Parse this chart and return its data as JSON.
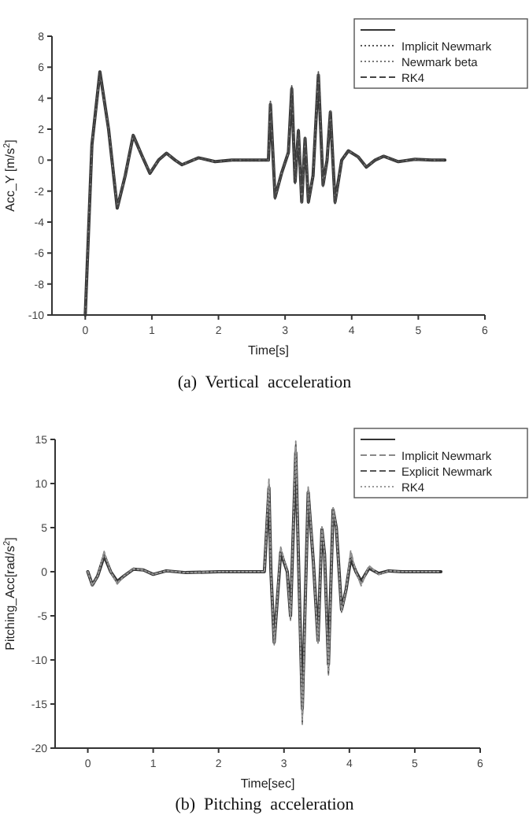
{
  "chart_data": [
    {
      "type": "line",
      "xlabel": "Time[s]",
      "ylabel": "Acc_Y [m/s$^{2}$]",
      "annotations": [
        "(a)  Vertical  acceleration"
      ],
      "xlim": [
        -0.5,
        6
      ],
      "ylim": [
        -10,
        8
      ],
      "xticks": [
        0,
        1,
        2,
        3,
        4,
        5,
        6
      ],
      "yticks": [
        -10,
        -8,
        -6,
        -4,
        -2,
        0,
        2,
        4,
        6,
        8
      ],
      "grid": false,
      "legend": "top right",
      "marker": "none",
      "x": [
        0,
        0.1,
        0.22,
        0.35,
        0.48,
        0.6,
        0.72,
        0.85,
        0.97,
        1.1,
        1.22,
        1.35,
        1.45,
        1.7,
        1.95,
        2.2,
        2.75,
        2.78,
        2.85,
        2.95,
        3.05,
        3.1,
        3.15,
        3.2,
        3.25,
        3.3,
        3.35,
        3.42,
        3.5,
        3.57,
        3.63,
        3.68,
        3.75,
        3.85,
        3.95,
        4.1,
        4.22,
        4.35,
        4.48,
        4.7,
        4.95,
        5.2,
        5.4
      ],
      "series": [
        {
          "color": "#333333",
          "line_style": "solid",
          "values": [
            -10,
            1,
            5.7,
            2,
            -3.1,
            -1,
            1.6,
            0.3,
            -0.85,
            0,
            0.45,
            0,
            -0.3,
            0.15,
            -0.1,
            0,
            0,
            3.6,
            -2.4,
            -0.8,
            0.5,
            4.6,
            -1.4,
            1.9,
            -2.7,
            1.4,
            -2.7,
            -1,
            5.5,
            -1.6,
            0,
            3.1,
            -2.7,
            0,
            0.6,
            0.2,
            -0.45,
            0,
            0.25,
            -0.1,
            0.05,
            0,
            0
          ]
        },
        {
          "name": "Implicit Newmark",
          "color": "#555555",
          "line_style": "dotted",
          "values": [
            -10,
            1,
            5.7,
            2,
            -3.1,
            -1,
            1.6,
            0.3,
            -0.85,
            0,
            0.45,
            0,
            -0.3,
            0.15,
            -0.1,
            0,
            0,
            3.8,
            -2.5,
            -0.8,
            0.5,
            4.8,
            -1.5,
            2,
            -2.8,
            1.5,
            -2.8,
            -1,
            5.7,
            -1.7,
            0,
            3.2,
            -2.8,
            0,
            0.6,
            0.2,
            -0.45,
            0,
            0.25,
            -0.1,
            0.05,
            0,
            0
          ]
        },
        {
          "name": "Newmark beta",
          "color": "#777777",
          "line_style": "dotted",
          "values": [
            -10,
            1,
            5.6,
            2,
            -3,
            -1,
            1.6,
            0.3,
            -0.8,
            0,
            0.45,
            0,
            -0.3,
            0.15,
            -0.1,
            0,
            0,
            3.7,
            -2.4,
            -0.8,
            0.5,
            4.7,
            -1.5,
            2,
            -2.8,
            1.5,
            -2.7,
            -1,
            5.6,
            -1.7,
            0,
            3.2,
            -2.8,
            0,
            0.6,
            0.2,
            -0.45,
            0,
            0.25,
            -0.1,
            0.05,
            0,
            0
          ]
        },
        {
          "name": "RK4",
          "color": "#444444",
          "line_style": "dashed",
          "values": [
            -10,
            1,
            5.7,
            2,
            -3.1,
            -1,
            1.6,
            0.3,
            -0.85,
            0,
            0.45,
            0,
            -0.3,
            0.15,
            -0.1,
            0,
            0,
            3.7,
            -2.5,
            -0.8,
            0.5,
            4.7,
            -1.5,
            2,
            -2.8,
            1.5,
            -2.8,
            -1,
            5.6,
            -1.7,
            0,
            3.2,
            -2.8,
            0,
            0.6,
            0.2,
            -0.45,
            0,
            0.25,
            -0.1,
            0.05,
            0,
            0
          ]
        }
      ]
    },
    {
      "type": "line",
      "xlabel": "Time[sec]",
      "ylabel": "Pitching_Acc[rad/s$^{2}$]",
      "annotations": [
        "(b)  Pitching  acceleration"
      ],
      "xlim": [
        -0.5,
        6
      ],
      "ylim": [
        -20,
        15
      ],
      "xticks": [
        0,
        1,
        2,
        3,
        4,
        5,
        6
      ],
      "yticks": [
        -20,
        -15,
        -10,
        -5,
        0,
        5,
        10,
        15
      ],
      "grid": false,
      "legend": "top right",
      "marker": "none",
      "x": [
        0,
        0.07,
        0.15,
        0.25,
        0.35,
        0.45,
        0.55,
        0.7,
        0.85,
        1,
        1.2,
        1.5,
        2,
        2.7,
        2.77,
        2.8,
        2.85,
        2.95,
        3.05,
        3.1,
        3.18,
        3.28,
        3.37,
        3.45,
        3.52,
        3.58,
        3.62,
        3.68,
        3.75,
        3.8,
        3.88,
        3.95,
        4.02,
        4.1,
        4.18,
        4.3,
        4.45,
        4.6,
        4.8,
        5.4
      ],
      "series": [
        {
          "color": "#333333",
          "line_style": "solid",
          "values": [
            0,
            -1.5,
            -0.5,
            1.8,
            0,
            -1.1,
            -0.5,
            0.3,
            0.2,
            -0.3,
            0.1,
            -0.1,
            0,
            0,
            9.5,
            0,
            -8,
            2.2,
            0,
            -5,
            13.5,
            -15.5,
            9,
            1,
            -7.8,
            4.8,
            2,
            -10.5,
            7,
            5,
            -4.3,
            -2,
            1.5,
            0,
            -1.1,
            0.4,
            -0.2,
            0.1,
            0,
            0
          ]
        },
        {
          "name": "Implicit Newmark",
          "color": "#888888",
          "line_style": "dashed",
          "values": [
            0,
            -1.6,
            -0.5,
            2.3,
            0,
            -1.4,
            -0.5,
            0.4,
            0.2,
            -0.3,
            0.1,
            -0.1,
            0,
            0,
            10.5,
            0,
            -8.3,
            2.8,
            0,
            -5.5,
            14.8,
            -17.3,
            9.6,
            1,
            -8.2,
            5.1,
            2,
            -11.7,
            7.4,
            5,
            -4.6,
            -2,
            2.4,
            0,
            -1.6,
            0.7,
            -0.3,
            0.1,
            0,
            0
          ]
        },
        {
          "name": "Explicit Newmark",
          "color": "#555555",
          "line_style": "dashed",
          "values": [
            0,
            -1.5,
            -0.5,
            2,
            0,
            -1.2,
            -0.5,
            0.3,
            0.2,
            -0.3,
            0.1,
            -0.1,
            0,
            0,
            10,
            0,
            -8.2,
            2.5,
            0,
            -5.3,
            14.5,
            -17,
            9.4,
            1,
            -8,
            5,
            2,
            -11.5,
            7.2,
            5,
            -4.5,
            -2,
            1.8,
            0,
            -1.3,
            0.5,
            -0.3,
            0.1,
            0,
            0
          ]
        },
        {
          "name": "RK4",
          "color": "#999999",
          "line_style": "dotted",
          "values": [
            0,
            -1.5,
            -0.5,
            2.1,
            0,
            -1.3,
            -0.5,
            0.3,
            0.2,
            -0.3,
            0.1,
            -0.1,
            0,
            0,
            10.2,
            0,
            -8.1,
            2.6,
            0,
            -5.2,
            14.2,
            -16.8,
            9.3,
            1,
            -8.1,
            5,
            2,
            -11.3,
            7.2,
            5,
            -4.4,
            -2,
            2,
            0,
            -1.4,
            0.6,
            -0.3,
            0.1,
            0,
            0
          ]
        }
      ]
    }
  ]
}
